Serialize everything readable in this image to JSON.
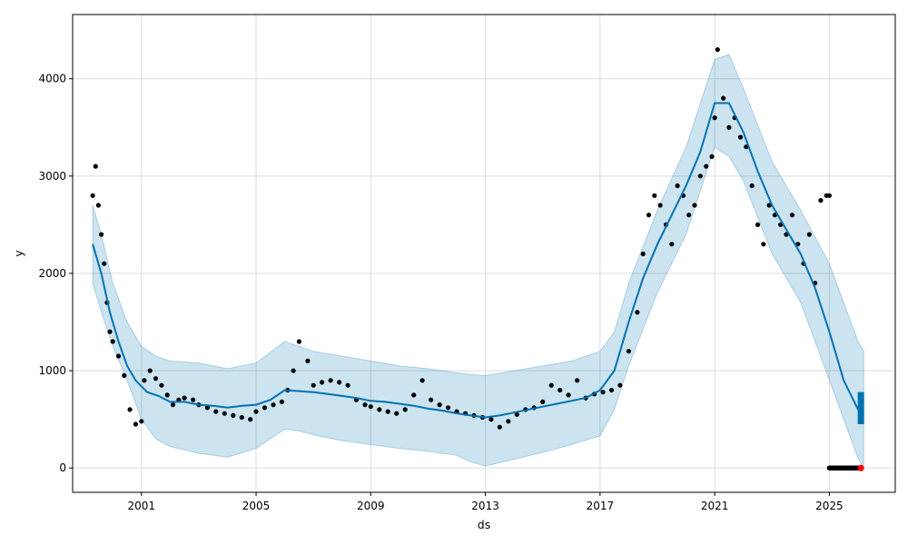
{
  "chart_data": {
    "type": "line",
    "xlabel": "ds",
    "ylabel": "y",
    "xlim": [
      1998.6,
      2027.3
    ],
    "ylim": [
      -250,
      4660
    ],
    "grid": true,
    "x_ticks": [
      {
        "value": 2001,
        "label": "2001"
      },
      {
        "value": 2005,
        "label": "2005"
      },
      {
        "value": 2009,
        "label": "2009"
      },
      {
        "value": 2013,
        "label": "2013"
      },
      {
        "value": 2017,
        "label": "2017"
      },
      {
        "value": 2021,
        "label": "2021"
      },
      {
        "value": 2025,
        "label": "2025"
      }
    ],
    "y_ticks": [
      {
        "value": 0,
        "label": "0"
      },
      {
        "value": 1000,
        "label": "1000"
      },
      {
        "value": 2000,
        "label": "2000"
      },
      {
        "value": 3000,
        "label": "3000"
      },
      {
        "value": 4000,
        "label": "4000"
      }
    ],
    "colors": {
      "forecast": "#0072B2",
      "interval": "#0072B2",
      "observed": "#000000",
      "highlight": "#ff0000",
      "grid": "#dddddd"
    },
    "forecast": {
      "x": [
        1999.3,
        1999.6,
        1999.9,
        2000.2,
        2000.5,
        2000.8,
        2001.2,
        2001.6,
        2002.0,
        2002.5,
        2003.0,
        2003.5,
        2004.0,
        2004.5,
        2005.0,
        2005.5,
        2006.0,
        2006.5,
        2007.0,
        2007.5,
        2008.0,
        2008.5,
        2009.0,
        2009.5,
        2010.0,
        2010.5,
        2011.0,
        2011.5,
        2012.0,
        2012.5,
        2013.0,
        2013.5,
        2014.0,
        2014.5,
        2015.0,
        2015.5,
        2016.0,
        2016.5,
        2017.0,
        2017.5,
        2018.0,
        2018.5,
        2019.0,
        2019.5,
        2020.0,
        2020.5,
        2021.0,
        2021.5,
        2022.0,
        2022.5,
        2023.0,
        2023.5,
        2024.0,
        2024.5,
        2025.0,
        2025.5,
        2026.0,
        2026.2
      ],
      "y": [
        2300,
        2000,
        1600,
        1300,
        1050,
        900,
        780,
        740,
        680,
        680,
        650,
        640,
        620,
        640,
        650,
        700,
        800,
        790,
        780,
        760,
        740,
        720,
        690,
        680,
        660,
        640,
        610,
        590,
        560,
        540,
        520,
        540,
        570,
        600,
        630,
        660,
        690,
        720,
        800,
        1000,
        1500,
        1950,
        2300,
        2600,
        2900,
        3250,
        3750,
        3750,
        3450,
        3050,
        2700,
        2450,
        2200,
        1850,
        1400,
        900,
        600,
        550
      ]
    },
    "interval": {
      "x": [
        1999.3,
        1999.6,
        2000.0,
        2000.5,
        2001.0,
        2001.5,
        2002.0,
        2003.0,
        2004.0,
        2005.0,
        2006.0,
        2006.5,
        2007.0,
        2008.0,
        2009.0,
        2010.0,
        2011.0,
        2012.0,
        2012.5,
        2013.0,
        2014.0,
        2015.0,
        2016.0,
        2017.0,
        2017.5,
        2018.0,
        2019.0,
        2020.0,
        2021.0,
        2021.5,
        2022.0,
        2023.0,
        2024.0,
        2025.0,
        2025.5,
        2026.0,
        2026.2
      ],
      "upper": [
        2700,
        2400,
        1900,
        1500,
        1250,
        1150,
        1100,
        1080,
        1020,
        1080,
        1300,
        1250,
        1200,
        1150,
        1100,
        1050,
        1020,
        980,
        960,
        950,
        1000,
        1050,
        1100,
        1200,
        1400,
        1900,
        2650,
        3300,
        4200,
        4250,
        3900,
        3150,
        2650,
        2100,
        1700,
        1300,
        1200
      ],
      "lower": [
        1900,
        1600,
        1250,
        900,
        500,
        300,
        220,
        150,
        110,
        200,
        400,
        380,
        340,
        280,
        240,
        200,
        170,
        130,
        60,
        20,
        90,
        160,
        240,
        330,
        600,
        1050,
        1800,
        2400,
        3300,
        3200,
        2950,
        2200,
        1700,
        900,
        500,
        100,
        0
      ]
    },
    "observed": {
      "x": [
        1999.3,
        1999.4,
        1999.5,
        1999.6,
        1999.7,
        1999.8,
        1999.9,
        2000.0,
        2000.2,
        2000.4,
        2000.6,
        2000.8,
        2001.0,
        2001.1,
        2001.3,
        2001.5,
        2001.7,
        2001.9,
        2002.1,
        2002.3,
        2002.5,
        2002.8,
        2003.0,
        2003.3,
        2003.6,
        2003.9,
        2004.2,
        2004.5,
        2004.8,
        2005.0,
        2005.3,
        2005.6,
        2005.9,
        2006.1,
        2006.3,
        2006.5,
        2006.8,
        2007.0,
        2007.3,
        2007.6,
        2007.9,
        2008.2,
        2008.5,
        2008.8,
        2009.0,
        2009.3,
        2009.6,
        2009.9,
        2010.2,
        2010.5,
        2010.8,
        2011.1,
        2011.4,
        2011.7,
        2012.0,
        2012.3,
        2012.6,
        2012.9,
        2013.2,
        2013.5,
        2013.8,
        2014.1,
        2014.4,
        2014.7,
        2015.0,
        2015.3,
        2015.6,
        2015.9,
        2016.2,
        2016.5,
        2016.8,
        2017.1,
        2017.4,
        2017.7,
        2018.0,
        2018.3,
        2018.5,
        2018.7,
        2018.9,
        2019.1,
        2019.3,
        2019.5,
        2019.7,
        2019.9,
        2020.1,
        2020.3,
        2020.5,
        2020.7,
        2020.9,
        2021.0,
        2021.1,
        2021.3,
        2021.5,
        2021.7,
        2021.9,
        2022.1,
        2022.3,
        2022.5,
        2022.7,
        2022.9,
        2023.1,
        2023.3,
        2023.5,
        2023.7,
        2023.9,
        2024.1,
        2024.3,
        2024.5,
        2024.7,
        2024.9,
        2025.0
      ],
      "y": [
        2800,
        3100,
        2700,
        2400,
        2100,
        1700,
        1400,
        1300,
        1150,
        950,
        600,
        450,
        480,
        900,
        1000,
        920,
        850,
        750,
        650,
        700,
        720,
        700,
        650,
        620,
        580,
        560,
        540,
        520,
        500,
        580,
        620,
        650,
        680,
        800,
        1000,
        1300,
        1100,
        850,
        880,
        900,
        880,
        850,
        700,
        650,
        630,
        600,
        580,
        560,
        600,
        750,
        900,
        700,
        650,
        620,
        580,
        560,
        540,
        520,
        500,
        420,
        480,
        550,
        600,
        620,
        680,
        850,
        800,
        750,
        900,
        720,
        760,
        780,
        800,
        850,
        1200,
        1600,
        2200,
        2600,
        2800,
        2700,
        2500,
        2300,
        2900,
        2800,
        2600,
        2700,
        3000,
        3100,
        3200,
        3600,
        4300,
        3800,
        3500,
        3600,
        3400,
        3300,
        2900,
        2500,
        2300,
        2700,
        2600,
        2500,
        2400,
        2600,
        2300,
        2100,
        2400,
        1900,
        2750,
        2800,
        2800
      ]
    },
    "future_points": {
      "x_start": 2025.0,
      "x_end": 2026.1,
      "y": 0
    },
    "highlight_point": {
      "x": 2026.1,
      "y": 0
    },
    "forecast_tail": {
      "x": 2026.1,
      "y_low": 450,
      "y_high": 780
    }
  }
}
